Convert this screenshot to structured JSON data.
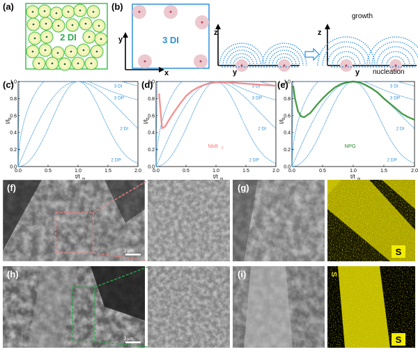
{
  "panel_labels": {
    "a": "(a)",
    "b": "(b)",
    "c": "(c)",
    "d": "(d)",
    "e": "(e)",
    "f": "(f)",
    "g": "(g)",
    "h": "(h)",
    "i": "(i)"
  },
  "schematic": {
    "a_text": "2 DI",
    "b_text": "3 DI",
    "axis_x": "x",
    "axis_y": "y",
    "axis_z": "z",
    "growth": "growth",
    "nucleation": "nucleation"
  },
  "chart_common": {
    "xlabel": "t/t",
    "xlabel_sub": "m",
    "ylabel": "I/I",
    "ylabel_sub": "m",
    "x_ticks": [
      "0.0",
      "0.5",
      "1.0",
      "1.5",
      "2.0"
    ],
    "y_ticks": [
      "0.0",
      "0.2",
      "0.4",
      "0.6",
      "0.8",
      "1.0"
    ]
  },
  "chart_data": [
    {
      "type": "line",
      "xlim": [
        0,
        2
      ],
      "ylim": [
        0,
        1
      ],
      "series": [
        {
          "name": "3 DI"
        },
        {
          "name": "3 DP"
        },
        {
          "name": "2 DI"
        },
        {
          "name": "2 DP"
        }
      ],
      "x": [
        0,
        0.5,
        1,
        1.5,
        2
      ]
    },
    {
      "type": "line",
      "xlim": [
        0,
        2
      ],
      "ylim": [
        0,
        1
      ],
      "series": [
        {
          "name": "3 DI"
        },
        {
          "name": "3 DP"
        },
        {
          "name": "2 DI"
        },
        {
          "name": "2 DP"
        },
        {
          "name": "NbB",
          "x": [
            0.05,
            0.1,
            0.15,
            0.2,
            0.3,
            0.4,
            0.5,
            0.6,
            0.7,
            0.8,
            0.9,
            1.0,
            1.2,
            1.4,
            1.6,
            1.8,
            2.0
          ],
          "y": [
            0.86,
            0.45,
            0.47,
            0.53,
            0.64,
            0.74,
            0.83,
            0.89,
            0.93,
            0.96,
            0.98,
            0.99,
            0.99,
            0.98,
            0.97,
            0.96,
            0.95
          ]
        }
      ],
      "material_label": "NbB",
      "material_sub": "2"
    },
    {
      "type": "line",
      "xlim": [
        0,
        2
      ],
      "ylim": [
        0,
        1
      ],
      "series": [
        {
          "name": "3 DI"
        },
        {
          "name": "3 DP"
        },
        {
          "name": "2 DI"
        },
        {
          "name": "2 DP"
        },
        {
          "name": "NPG",
          "x": [
            0.02,
            0.05,
            0.1,
            0.15,
            0.2,
            0.3,
            0.4,
            0.5,
            0.6,
            0.7,
            0.8,
            0.9,
            1.0,
            1.1,
            1.2,
            1.3,
            1.4,
            1.5,
            1.6,
            1.7,
            1.8,
            1.9,
            2.0
          ],
          "y": [
            0.95,
            0.8,
            0.65,
            0.59,
            0.58,
            0.63,
            0.72,
            0.8,
            0.87,
            0.93,
            0.97,
            0.99,
            1.0,
            0.99,
            0.96,
            0.92,
            0.87,
            0.8,
            0.74,
            0.68,
            0.62,
            0.58,
            0.55
          ]
        }
      ],
      "material_label": "NPG"
    }
  ],
  "sem": {
    "scale_f": "2 μm",
    "scale_h": "2 μm",
    "map_g": "S",
    "map_i": "S"
  },
  "colors": {
    "blue": "#2f8fd8",
    "green": "#2fa84f",
    "pink": "#f08080",
    "dkgreen": "#2a8c2a",
    "yellow": "#e8e000"
  }
}
